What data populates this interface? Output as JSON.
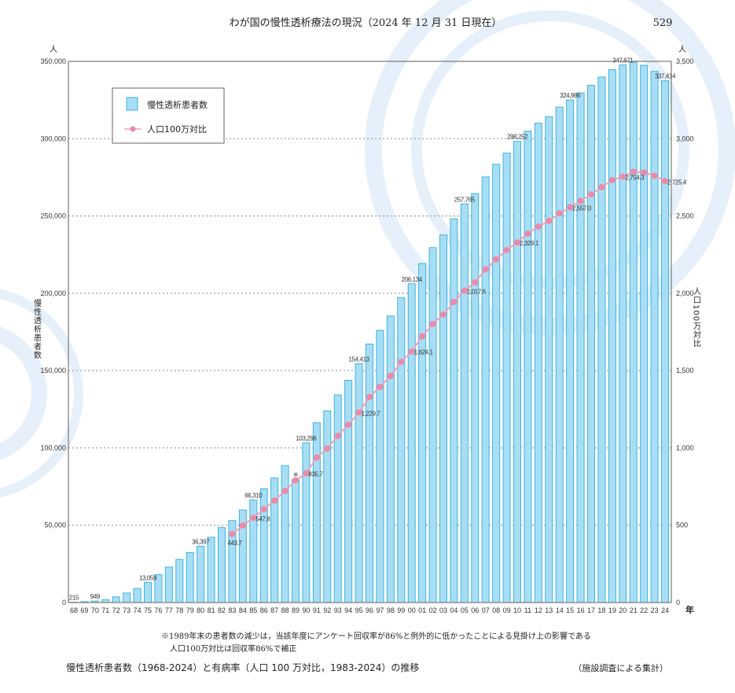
{
  "header": {
    "title": "わが国の慢性透析療法の現況（2024 年 12 月 31 日現在）",
    "page_number": "529"
  },
  "footer": {
    "note_line1": "※1989年末の患者数の減少は，当該年度にアンケート回収率が86%と例外的に低かったことによる見掛け上の影響である",
    "note_line2": "人口100万対比は回収率86%で補正",
    "caption": "慢性透析患者数（1968-2024）と有病率（人口 100 万対比，1983-2024）の推移",
    "source": "（施設調査による集計）"
  },
  "chart_data": {
    "type": "bar+line",
    "title": "",
    "left_axis": {
      "unit": "人",
      "label": "慢性透析患者数",
      "ylim": [
        0,
        350000
      ],
      "ticks": [
        "0",
        "50,000",
        "100,000",
        "150,000",
        "200,000",
        "250,000",
        "300,000",
        "350,000"
      ],
      "tick_values": [
        0,
        50000,
        100000,
        150000,
        200000,
        250000,
        300000,
        350000
      ]
    },
    "right_axis": {
      "unit": "人",
      "label": "人口100万対比",
      "ylim": [
        0,
        3500
      ],
      "ticks": [
        "0",
        "500",
        "1,000",
        "1,500",
        "2,000",
        "2,500",
        "3,000",
        "3,500"
      ],
      "tick_values": [
        0,
        500,
        1000,
        1500,
        2000,
        2500,
        3000,
        3500
      ]
    },
    "x_axis": {
      "unit": "年"
    },
    "grid": "horizontal dotted",
    "legend_placement": "top-left",
    "colors": {
      "bar_fill": "#a8def5",
      "bar_stroke": "#3bb4dc",
      "line": "#f0a0b8",
      "marker": "#ee8aa8"
    },
    "categories": [
      "68",
      "69",
      "70",
      "71",
      "72",
      "73",
      "74",
      "75",
      "76",
      "77",
      "78",
      "79",
      "80",
      "81",
      "82",
      "83",
      "84",
      "85",
      "86",
      "87",
      "88",
      "89",
      "90",
      "91",
      "92",
      "93",
      "94",
      "95",
      "96",
      "97",
      "98",
      "99",
      "00",
      "01",
      "02",
      "03",
      "04",
      "05",
      "06",
      "07",
      "08",
      "09",
      "10",
      "11",
      "12",
      "13",
      "14",
      "15",
      "16",
      "17",
      "18",
      "19",
      "20",
      "21",
      "22",
      "23",
      "24"
    ],
    "series": [
      {
        "name": "慢性透析患者数",
        "type": "bar",
        "axis": "left",
        "values": [
          215,
          500,
          949,
          1826,
          3631,
          6148,
          9107,
          13059,
          18013,
          22935,
          27901,
          32356,
          36397,
          42223,
          48449,
          53017,
          59811,
          66310,
          73537,
          80553,
          88534,
          79524,
          103296,
          116303,
          123926,
          134298,
          143709,
          154413,
          167192,
          175988,
          185322,
          197213,
          206134,
          219183,
          229538,
          237710,
          248166,
          257765,
          264473,
          275242,
          283421,
          290661,
          298252,
          304856,
          310007,
          314180,
          320448,
          324986,
          329609,
          334505,
          339841,
          344640,
          347671,
          349700,
          347474,
          343508,
          337414
        ]
      },
      {
        "name": "人口100万対比",
        "type": "line",
        "axis": "right",
        "values": [
          null,
          null,
          null,
          null,
          null,
          null,
          null,
          null,
          null,
          null,
          null,
          null,
          null,
          null,
          null,
          443.7,
          497.9,
          547.8,
          604.1,
          659.5,
          721.6,
          790,
          835.7,
          937.7,
          996.1,
          1077.7,
          1149.9,
          1229.7,
          1328.6,
          1394.7,
          1465.3,
          1556.7,
          1624.1,
          1721.9,
          1800.9,
          1862.7,
          1943.5,
          2017.6,
          2069.9,
          2154.2,
          2219.6,
          2279.6,
          2329.1,
          2385.4,
          2431.2,
          2468.0,
          2517.3,
          2557.0,
          2596.8,
          2639.8,
          2686.6,
          2731.6,
          2754.3,
          2786.6,
          2781.0,
          2760.0,
          2725.4
        ]
      }
    ],
    "bar_labels": [
      {
        "category": "68",
        "text": "215"
      },
      {
        "category": "70",
        "text": "949"
      },
      {
        "category": "75",
        "text": "13,059"
      },
      {
        "category": "80",
        "text": "36,397"
      },
      {
        "category": "85",
        "text": "66,310"
      },
      {
        "category": "89",
        "text": "※"
      },
      {
        "category": "90",
        "text": "103,296"
      },
      {
        "category": "95",
        "text": "154,413"
      },
      {
        "category": "00",
        "text": "206,134"
      },
      {
        "category": "05",
        "text": "257,765"
      },
      {
        "category": "10",
        "text": "298,252"
      },
      {
        "category": "15",
        "text": "324,986"
      },
      {
        "category": "20",
        "text": "347,671"
      },
      {
        "category": "24",
        "text": "337,414"
      }
    ],
    "line_labels": [
      {
        "category": "83",
        "text": "443.7"
      },
      {
        "category": "85",
        "text": "547.8"
      },
      {
        "category": "90",
        "text": "835.7"
      },
      {
        "category": "95",
        "text": "1,229.7"
      },
      {
        "category": "00",
        "text": "1,624.1"
      },
      {
        "category": "05",
        "text": "2,017.6"
      },
      {
        "category": "10",
        "text": "2,329.1"
      },
      {
        "category": "15",
        "text": "2,557.0"
      },
      {
        "category": "20",
        "text": "2,754.3"
      },
      {
        "category": "24",
        "text": "2,725.4"
      }
    ],
    "legend": [
      "慢性透析患者数",
      "人口100万対比"
    ]
  }
}
